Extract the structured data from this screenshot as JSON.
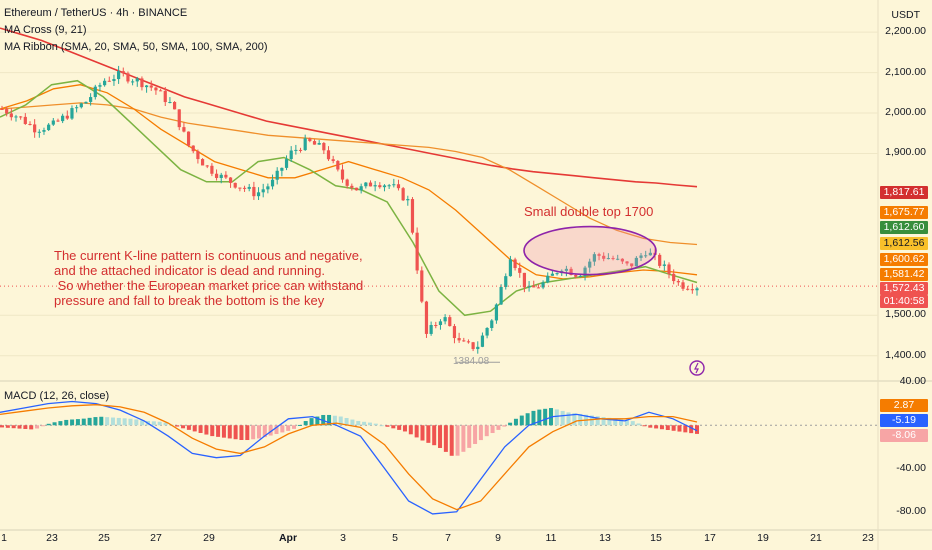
{
  "header": {
    "symbol_line": "Ethereum / TetherUS · 4h · BINANCE",
    "indicator_1": "MA Cross (9, 21)",
    "indicator_2": "MA Ribbon (SMA, 20, SMA, 50, SMA, 100, SMA, 200)",
    "macd_title": "MACD (12, 26, close)",
    "currency": "USDT"
  },
  "annotations": {
    "double_top_label": "Small double top 1700",
    "low_label": "1384.08",
    "analysis_lines": [
      "The current K-line pattern is continuous and negative,",
      "and the attached indicator is dead and running.",
      " So whether the European market price can withstand",
      "pressure and fall to break the bottom is the key"
    ]
  },
  "price_badges": [
    {
      "text": "1,817.61",
      "color": "#d32f2f"
    },
    {
      "text": "1,675.77",
      "color": "#f57c00"
    },
    {
      "text": "1,612.60",
      "color": "#388e3c"
    },
    {
      "text": "1,612.56",
      "color": "#f9c02a"
    },
    {
      "text": "1,600.62",
      "color": "#f57c00"
    },
    {
      "text": "1,581.42",
      "color": "#f57c00"
    },
    {
      "text": "1,572.43",
      "color": "#ef5350"
    },
    {
      "text": "01:40:58",
      "color": "#ef5350"
    }
  ],
  "macd_badges": [
    {
      "text": "2.87",
      "color": "#f57c00"
    },
    {
      "text": "-5.19",
      "color": "#2962ff"
    },
    {
      "text": "-8.06",
      "color": "#f7a5a5"
    }
  ],
  "chart_data": {
    "type": "candlestick",
    "price_axis": {
      "ticks": [
        "2,200.00",
        "2,100.00",
        "2,000.00",
        "1,900.00",
        "1,500.00",
        "1,400.00"
      ],
      "range": [
        1340,
        2230
      ]
    },
    "macd_axis": {
      "ticks": [
        "40.00",
        "-40.00",
        "-80.00"
      ],
      "range": [
        -95,
        40
      ]
    },
    "x_labels": [
      "1",
      "23",
      "25",
      "27",
      "29",
      "Apr",
      "3",
      "5",
      "7",
      "9",
      "11",
      "13",
      "15",
      "17",
      "19",
      "21",
      "23"
    ],
    "price_path": [
      2010,
      1990,
      1960,
      1970,
      2000,
      2030,
      2080,
      2095,
      2080,
      2060,
      2020,
      1920,
      1870,
      1840,
      1820,
      1800,
      1830,
      1900,
      1930,
      1910,
      1840,
      1810,
      1830,
      1820,
      1780,
      1450,
      1500,
      1430,
      1420,
      1500,
      1650,
      1560,
      1580,
      1620,
      1600,
      1650,
      1640,
      1620,
      1660,
      1620,
      1575,
      1572
    ],
    "sma200": [
      2210,
      2195,
      2180,
      2160,
      2140,
      2120,
      2100,
      2080,
      2060,
      2040,
      2025,
      2010,
      1995,
      1980,
      1970,
      1960,
      1950,
      1940,
      1930,
      1920,
      1910,
      1900,
      1890,
      1880,
      1870,
      1862,
      1855,
      1850,
      1845,
      1840,
      1835,
      1830,
      1827,
      1822,
      1818
    ],
    "sma100": [
      2010,
      2015,
      2020,
      2025,
      2020,
      2010,
      1990,
      1975,
      1965,
      1955,
      1945,
      1940,
      1935,
      1930,
      1925,
      1920,
      1915,
      1905,
      1890,
      1860,
      1820,
      1780,
      1740,
      1710,
      1690,
      1680,
      1675
    ],
    "sma50": [
      2010,
      2030,
      2060,
      2070,
      2050,
      2010,
      1960,
      1920,
      1880,
      1860,
      1840,
      1840,
      1860,
      1880,
      1860,
      1840,
      1810,
      1760,
      1700,
      1640,
      1600,
      1590,
      1595,
      1605,
      1612,
      1608,
      1600
    ],
    "sma20": [
      1990,
      2020,
      2070,
      2080,
      2040,
      1980,
      1920,
      1860,
      1830,
      1830,
      1880,
      1890,
      1860,
      1820,
      1810,
      1780,
      1680,
      1560,
      1500,
      1510,
      1560,
      1580,
      1590,
      1600,
      1610,
      1620,
      1600,
      1581
    ],
    "macd_hist": [
      -2,
      -3,
      -4,
      2,
      5,
      6,
      8,
      7,
      6,
      4,
      3,
      -2,
      -6,
      -10,
      -12,
      -14,
      -12,
      -8,
      -4,
      6,
      10,
      8,
      4,
      2,
      -2,
      -6,
      -14,
      -20,
      -30,
      -20,
      -10,
      -2,
      8,
      14,
      16,
      12,
      10,
      8,
      6,
      4,
      -2,
      -4,
      -6,
      -8
    ],
    "macd_line": [
      12,
      16,
      20,
      22,
      20,
      14,
      4,
      -10,
      -26,
      -30,
      -28,
      -10,
      6,
      8,
      0,
      -10,
      -40,
      -70,
      -82,
      -80,
      -50,
      -20,
      0,
      8,
      10,
      6,
      4,
      12,
      6,
      -5
    ],
    "signal_line": [
      10,
      13,
      16,
      18,
      19,
      17,
      12,
      2,
      -12,
      -22,
      -26,
      -20,
      -8,
      0,
      2,
      -2,
      -18,
      -45,
      -68,
      -78,
      -70,
      -45,
      -20,
      -6,
      4,
      6,
      6,
      8,
      8,
      3
    ]
  }
}
